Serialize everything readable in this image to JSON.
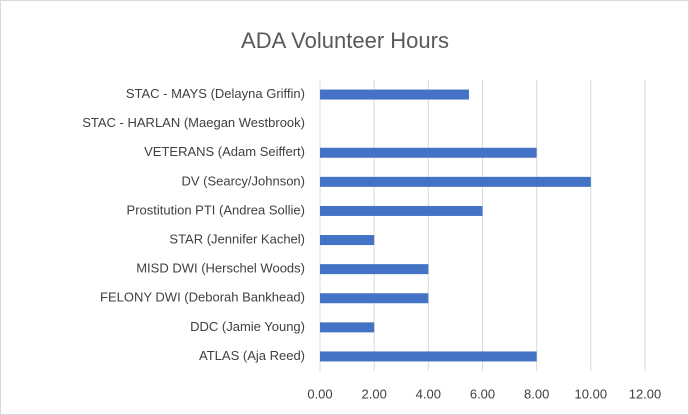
{
  "chart_data": {
    "type": "barh",
    "title": "ADA Volunteer Hours",
    "categories": [
      "STAC - MAYS (Delayna Griffin)",
      "STAC - HARLAN (Maegan Westbrook)",
      "VETERANS (Adam Seiffert)",
      "DV (Searcy/Johnson)",
      "Prostitution PTI (Andrea Sollie)",
      "STAR (Jennifer Kachel)",
      "MISD DWI (Herschel Woods)",
      "FELONY DWI (Deborah Bankhead)",
      "DDC (Jamie Young)",
      "ATLAS (Aja Reed)"
    ],
    "values": [
      5.5,
      0,
      8,
      10,
      6,
      2,
      4,
      4,
      2,
      8
    ],
    "color": "#4472c4",
    "xlim": [
      0,
      12
    ],
    "xticks": [
      {
        "value": 0,
        "label": "0.00"
      },
      {
        "value": 2,
        "label": "2.00"
      },
      {
        "value": 4,
        "label": "4.00"
      },
      {
        "value": 6,
        "label": "6.00"
      },
      {
        "value": 8,
        "label": "8.00"
      },
      {
        "value": 10,
        "label": "10.00"
      },
      {
        "value": 12,
        "label": "12.00"
      }
    ],
    "grid": true
  }
}
